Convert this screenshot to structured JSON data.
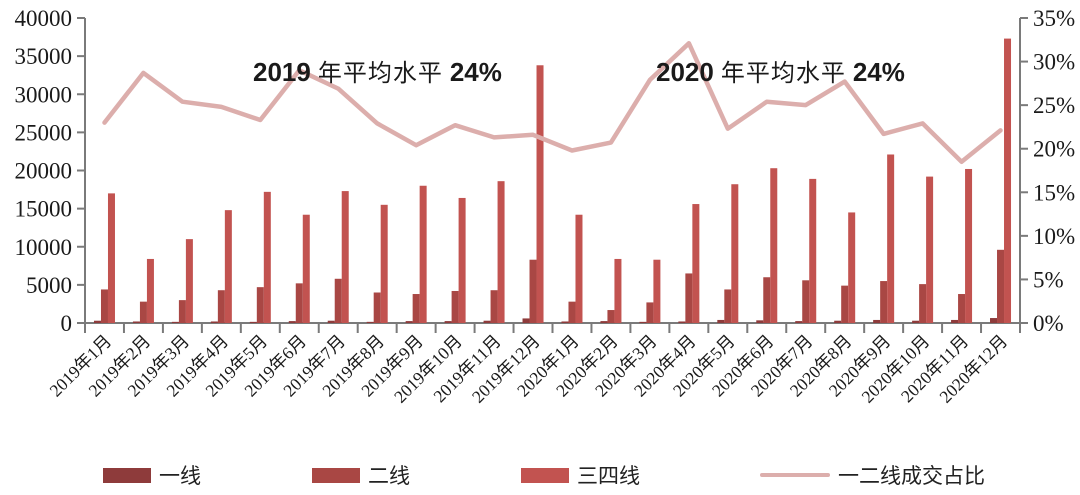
{
  "chart_data": {
    "type": "bar",
    "subtype": "grouped-bars-with-line",
    "title": "",
    "categories": [
      "2019年1月",
      "2019年2月",
      "2019年3月",
      "2019年4月",
      "2019年5月",
      "2019年6月",
      "2019年7月",
      "2019年8月",
      "2019年9月",
      "2019年10月",
      "2019年11月",
      "2019年12月",
      "2020年1月",
      "2020年2月",
      "2020年3月",
      "2020年4月",
      "2020年5月",
      "2020年6月",
      "2020年7月",
      "2020年8月",
      "2020年9月",
      "2020年10月",
      "2020年11月",
      "2020年12月"
    ],
    "series": [
      {
        "name": "一线",
        "type": "bar",
        "axis": "left",
        "color": "#8e3b3b",
        "values": [
          300,
          200,
          150,
          200,
          150,
          250,
          300,
          150,
          250,
          250,
          300,
          600,
          200,
          250,
          150,
          200,
          400,
          350,
          250,
          300,
          400,
          300,
          400,
          650
        ]
      },
      {
        "name": "二线",
        "type": "bar",
        "axis": "left",
        "color": "#a94744",
        "values": [
          4400,
          2800,
          3000,
          4300,
          4700,
          5200,
          5800,
          4000,
          3800,
          4200,
          4300,
          8300,
          2800,
          1700,
          2700,
          6500,
          4400,
          6000,
          5600,
          4900,
          5500,
          5100,
          3800,
          9600
        ]
      },
      {
        "name": "三四线",
        "type": "bar",
        "axis": "left",
        "color": "#c25350",
        "values": [
          17000,
          8400,
          11000,
          14800,
          17200,
          14200,
          17300,
          15500,
          18000,
          16400,
          18600,
          33800,
          14200,
          8400,
          8300,
          15600,
          18200,
          20300,
          18900,
          14500,
          22100,
          19200,
          20200,
          37300
        ]
      },
      {
        "name": "一二线成交占比",
        "type": "line",
        "axis": "right",
        "color": "#dcaeac",
        "values": [
          23.0,
          28.7,
          25.4,
          24.8,
          23.3,
          29.0,
          26.9,
          22.9,
          20.4,
          22.7,
          21.3,
          21.6,
          19.8,
          20.7,
          27.9,
          32.1,
          22.3,
          25.4,
          25.0,
          27.7,
          21.7,
          22.9,
          18.5,
          22.1
        ]
      }
    ],
    "left_axis": {
      "min": 0,
      "max": 40000,
      "step": 5000,
      "tick_labels": [
        "0",
        "5000",
        "10000",
        "15000",
        "20000",
        "25000",
        "30000",
        "35000",
        "40000"
      ]
    },
    "right_axis": {
      "min": 0,
      "max": 35,
      "step": 5,
      "tick_labels": [
        "0%",
        "5%",
        "10%",
        "15%",
        "20%",
        "25%",
        "30%",
        "35%"
      ]
    },
    "annotations": [
      {
        "year": "2019",
        "text": "年平均水平",
        "value": "24%"
      },
      {
        "year": "2020",
        "text": "年平均水平",
        "value": "24%"
      }
    ],
    "legend_position": "bottom",
    "grid": "off"
  }
}
